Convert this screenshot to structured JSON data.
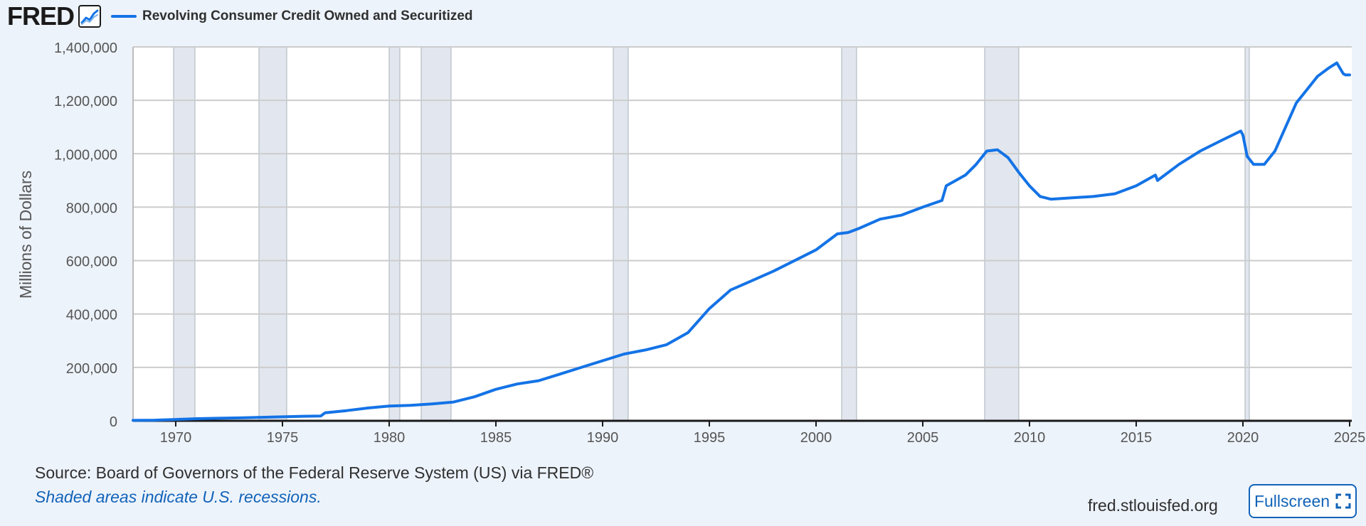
{
  "header": {
    "logo": "FRED",
    "series_title": "Revolving Consumer Credit Owned and Securitized"
  },
  "footer": {
    "source": "Source: Board of Governors of the Federal Reserve System (US) via FRED®",
    "note": "Shaded areas indicate U.S. recessions.",
    "site": "fred.stlouisfed.org",
    "fullscreen_label": "Fullscreen"
  },
  "colors": {
    "background": "#edf3fb",
    "series": "#1473e6",
    "recession": "#e2e7ef",
    "grid": "#cccccc",
    "link": "#1163b8"
  },
  "chart_data": {
    "type": "line",
    "title": "Revolving Consumer Credit Owned and Securitized",
    "xlabel": "",
    "ylabel": "Millions of Dollars",
    "xlim": [
      1968,
      2025.1
    ],
    "ylim": [
      0,
      1400000
    ],
    "x_ticks": [
      1970,
      1975,
      1980,
      1985,
      1990,
      1995,
      2000,
      2005,
      2010,
      2015,
      2020,
      2025
    ],
    "y_ticks": [
      0,
      200000,
      400000,
      600000,
      800000,
      1000000,
      1200000,
      1400000
    ],
    "y_tick_labels": [
      "0",
      "200,000",
      "400,000",
      "600,000",
      "800,000",
      "1,000,000",
      "1,200,000",
      "1,400,000"
    ],
    "grid": true,
    "legend": "top-left",
    "recessions": [
      [
        1969.9,
        1970.9
      ],
      [
        1973.9,
        1975.2
      ],
      [
        1980.0,
        1980.5
      ],
      [
        1981.5,
        1982.9
      ],
      [
        1990.5,
        1991.2
      ],
      [
        2001.2,
        2001.9
      ],
      [
        2007.9,
        2009.5
      ],
      [
        2020.1,
        2020.3
      ]
    ],
    "series": [
      {
        "name": "Revolving Consumer Credit Owned and Securitized",
        "x": [
          1968,
          1969,
          1970,
          1971,
          1972,
          1973,
          1974,
          1975,
          1976,
          1976.8,
          1977,
          1978,
          1979,
          1980,
          1981,
          1982,
          1983,
          1984,
          1985,
          1986,
          1987,
          1988,
          1989,
          1990,
          1991,
          1992,
          1993,
          1994,
          1995,
          1996,
          1997,
          1998,
          1999,
          2000,
          2001,
          2001.5,
          2002,
          2003,
          2004,
          2005,
          2005.9,
          2006.1,
          2007,
          2007.5,
          2008,
          2008.5,
          2009,
          2009.5,
          2010,
          2010.5,
          2011,
          2012,
          2013,
          2014,
          2015,
          2015.9,
          2016,
          2017,
          2018,
          2019,
          2019.9,
          2020,
          2020.2,
          2020.5,
          2021,
          2021.5,
          2022,
          2022.5,
          2023,
          2023.5,
          2024,
          2024.4,
          2024.7,
          2024.8,
          2025
        ],
        "values": [
          1500,
          2500,
          5000,
          8000,
          9500,
          11000,
          13000,
          15000,
          17000,
          18000,
          30000,
          38000,
          48000,
          55000,
          58000,
          63000,
          70000,
          90000,
          118000,
          138000,
          150000,
          175000,
          200000,
          225000,
          250000,
          265000,
          285000,
          330000,
          420000,
          490000,
          525000,
          560000,
          600000,
          640000,
          700000,
          705000,
          720000,
          755000,
          770000,
          800000,
          825000,
          880000,
          920000,
          960000,
          1010000,
          1015000,
          985000,
          930000,
          880000,
          840000,
          830000,
          835000,
          840000,
          850000,
          880000,
          920000,
          900000,
          960000,
          1010000,
          1050000,
          1085000,
          1070000,
          990000,
          960000,
          960000,
          1010000,
          1100000,
          1190000,
          1240000,
          1290000,
          1320000,
          1340000,
          1300000,
          1295000,
          1295000
        ]
      }
    ]
  }
}
